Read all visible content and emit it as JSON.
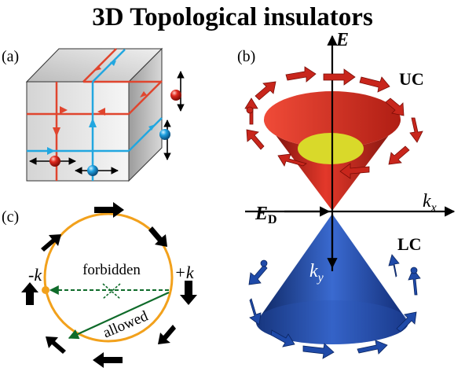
{
  "title": "3D Topological insulators",
  "panels": {
    "a": {
      "label": "(a)"
    },
    "b": {
      "label": "(b)",
      "energy_axis": "E",
      "kx_axis_main": "k",
      "kx_axis_sub": "x",
      "ky_axis_main": "k",
      "ky_axis_sub": "y",
      "dirac_point_main": "E",
      "dirac_point_sub": "D",
      "upper_cone": "UC",
      "lower_cone": "LC"
    },
    "c": {
      "label": "(c)",
      "minus_k": "-k",
      "plus_k": "+k",
      "forbidden": "forbidden",
      "allowed": "allowed"
    }
  },
  "colors": {
    "red_edge": "#e0452e",
    "blue_edge": "#22a7e0",
    "upper_cone": "#c8261c",
    "lower_cone": "#1f4aa8",
    "fermi_disk": "#d9d92a",
    "circle": "#f2a11c",
    "green": "#0f6b2a"
  }
}
